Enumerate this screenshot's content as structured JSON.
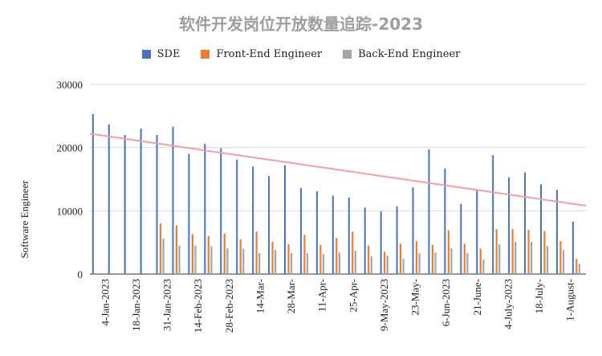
{
  "chart_data": {
    "type": "bar",
    "title": "软件开发岗位开放数量追踪-2023",
    "ylabel": "Software Engineer",
    "xlabel": "",
    "ylim": [
      0,
      30000
    ],
    "yticks": [
      "0",
      "10000",
      "20000",
      "30000"
    ],
    "grid": true,
    "legend_position": "top",
    "x_tick_labels": [
      "4-Jan-2023",
      "18-Jan-2023",
      "31-Jan-2023",
      "14-Feb-2023",
      "28-Feb-2023",
      "14-Mar-",
      "28-Mar-",
      "11-Apr-",
      "25-Apr-",
      "9-May-2023",
      "23-May-",
      "6-Jun-2023",
      "21-June-",
      "4-July-2023",
      "18-July-",
      "1-August-"
    ],
    "series": [
      {
        "name": "SDE",
        "color": "#4472c4",
        "values": [
          25300,
          23700,
          22000,
          23000,
          22000,
          23300,
          19000,
          20600,
          19900,
          18100,
          17000,
          15500,
          17200,
          13600,
          13100,
          12400,
          12100,
          10500,
          9900,
          10700,
          13700,
          19700,
          16700,
          11100,
          13300,
          18800,
          15300,
          16100,
          14200,
          13300,
          8300
        ]
      },
      {
        "name": "Front-End Engineer",
        "color": "#ed7d31",
        "values": [
          0,
          0,
          0,
          0,
          8000,
          7700,
          6300,
          6000,
          6400,
          5500,
          6700,
          5100,
          4700,
          6200,
          4600,
          5700,
          6700,
          4500,
          3500,
          4800,
          5200,
          4600,
          6900,
          4800,
          4000,
          7100,
          7100,
          7000,
          6800,
          5200,
          2400
        ]
      },
      {
        "name": "Back-End Engineer",
        "color": "#a5a5a5",
        "values": [
          0,
          0,
          0,
          0,
          5600,
          4500,
          4500,
          4400,
          4100,
          4000,
          3300,
          3800,
          3300,
          3300,
          3200,
          3400,
          3700,
          2800,
          2900,
          2400,
          3300,
          3400,
          4100,
          3300,
          2300,
          4700,
          5100,
          5100,
          4400,
          3800,
          1600
        ]
      }
    ],
    "trendline": {
      "color": "#f4a0a0",
      "start_value": 22200,
      "end_value": 10800
    }
  }
}
